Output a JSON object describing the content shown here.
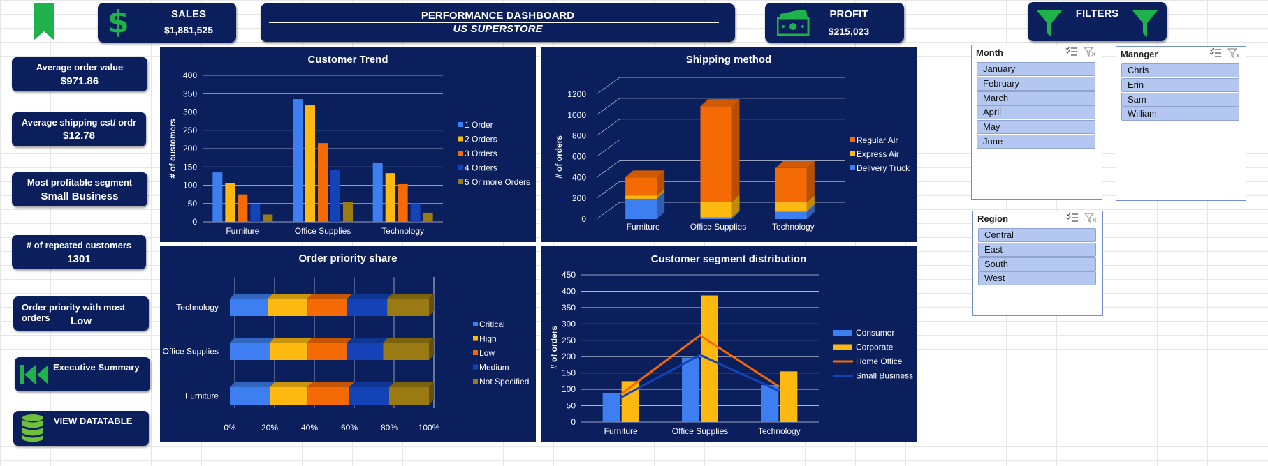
{
  "header": {
    "sales_label": "SALES",
    "sales_value": "$1,881,525",
    "title": "PERFORMANCE DASHBOARD",
    "subtitle": "US SUPERSTORE",
    "profit_label": "PROFIT",
    "profit_value": "$215,023",
    "filters_label": "FILTERS"
  },
  "kpis": [
    {
      "label": "Average order value",
      "value": "$971.86"
    },
    {
      "label": "Average shipping cst/ ordr",
      "value": "$12.78"
    },
    {
      "label": "Most profitable segment",
      "value": "Small Business"
    },
    {
      "label": "# of repeated customers",
      "value": "1301"
    },
    {
      "label": "Order priority with most orders",
      "value": "Low"
    }
  ],
  "nav": {
    "executive_summary": "Executive Summary",
    "view_datatable": "VIEW DATATABLE"
  },
  "colors": {
    "navy": "#0a1f5c",
    "green": "#1fb24a",
    "blue": "#3d7ff0",
    "yellow": "#fdb90f",
    "orange": "#f46a04",
    "darkblue": "#1443b8",
    "olive": "#9a7a12"
  },
  "icons": {
    "bookmark": "bookmark-icon",
    "sales": "dollar-icon",
    "profit": "banknote-icon",
    "filter": "filter-icon",
    "rewind": "rewind-icon",
    "database": "database-icon"
  },
  "slicers": {
    "month": {
      "title": "Month",
      "items": [
        "January",
        "February",
        "March",
        "April",
        "May",
        "June"
      ]
    },
    "manager": {
      "title": "Manager",
      "items": [
        "Chris",
        "Erin",
        "Sam",
        "William"
      ]
    },
    "region": {
      "title": "Region",
      "items": [
        "Central",
        "East",
        "South",
        "West"
      ]
    }
  },
  "chart_data": [
    {
      "type": "bar",
      "title": "Customer Trend",
      "ylabel": "# of customers",
      "ylim": [
        0,
        400
      ],
      "yticks": [
        0,
        50,
        100,
        150,
        200,
        250,
        300,
        350,
        400
      ],
      "categories": [
        "Furniture",
        "Office Supplies",
        "Technology"
      ],
      "series": [
        {
          "name": "1 Order",
          "color": "#3d7ff0",
          "values": [
            135,
            335,
            162
          ]
        },
        {
          "name": "2 Orders",
          "color": "#fdb90f",
          "values": [
            105,
            318,
            133
          ]
        },
        {
          "name": "3 Orders",
          "color": "#f46a04",
          "values": [
            75,
            215,
            103
          ]
        },
        {
          "name": "4 Orders",
          "color": "#1443b8",
          "values": [
            48,
            142,
            50
          ]
        },
        {
          "name": "5 Or more Orders",
          "color": "#9a7a12",
          "values": [
            20,
            55,
            25
          ]
        }
      ],
      "legend": "right"
    },
    {
      "type": "bar",
      "title": "Shipping method",
      "ylabel": "# of orders",
      "ylim": [
        0,
        1200
      ],
      "yticks": [
        0,
        200,
        400,
        600,
        800,
        1000,
        1200
      ],
      "categories": [
        "Furniture",
        "Office Supplies",
        "Technology"
      ],
      "stacked": true,
      "series": [
        {
          "name": "Regular Air",
          "color": "#f46a04",
          "values": [
            175,
            920,
            330
          ]
        },
        {
          "name": "Express Air",
          "color": "#fdb90f",
          "values": [
            30,
            150,
            90
          ]
        },
        {
          "name": "Delivery Truck",
          "color": "#3d7ff0",
          "values": [
            195,
            15,
            70
          ]
        }
      ],
      "legend": "right"
    },
    {
      "type": "bar",
      "title": "Order priority share",
      "orientation": "horizontal",
      "stacked": true,
      "percent": true,
      "xticks": [
        "0%",
        "20%",
        "40%",
        "60%",
        "80%",
        "100%"
      ],
      "categories": [
        "Technology",
        "Office Supplies",
        "Furniture"
      ],
      "series": [
        {
          "name": "Critical",
          "color": "#3d7ff0",
          "values": [
            19,
            20,
            20
          ]
        },
        {
          "name": "High",
          "color": "#fdb90f",
          "values": [
            20,
            19,
            19
          ]
        },
        {
          "name": "Low",
          "color": "#f46a04",
          "values": [
            20,
            20,
            21
          ]
        },
        {
          "name": "Medium",
          "color": "#1443b8",
          "values": [
            20,
            18,
            20
          ]
        },
        {
          "name": "Not Specified",
          "color": "#9a7a12",
          "values": [
            21,
            23,
            20
          ]
        }
      ],
      "legend": "right"
    },
    {
      "type": "bar",
      "title": "Customer segment distribution",
      "ylabel": "# of orders",
      "ylim": [
        0,
        450
      ],
      "yticks": [
        0,
        50,
        100,
        150,
        200,
        250,
        300,
        350,
        400,
        450
      ],
      "categories": [
        "Furniture",
        "Office Supplies",
        "Technology"
      ],
      "series": [
        {
          "name": "Consumer",
          "kind": "bar",
          "color": "#3d7ff0",
          "values": [
            88,
            197,
            113
          ]
        },
        {
          "name": "Corporate",
          "kind": "bar",
          "color": "#fdb90f",
          "values": [
            125,
            387,
            155
          ]
        },
        {
          "name": "Home Office",
          "kind": "line",
          "color": "#f46a04",
          "values": [
            85,
            265,
            108
          ]
        },
        {
          "name": "Small Business",
          "kind": "line",
          "color": "#1443b8",
          "values": [
            75,
            205,
            95
          ]
        }
      ],
      "legend": "right"
    }
  ]
}
